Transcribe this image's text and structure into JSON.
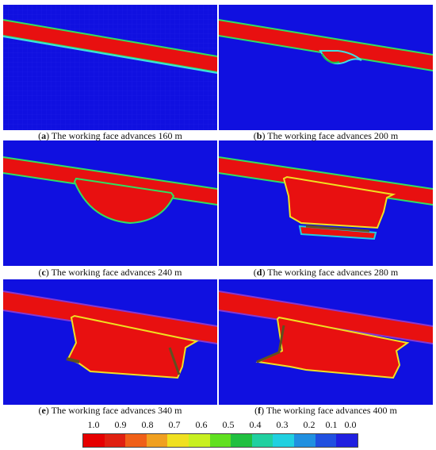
{
  "panels": [
    {
      "letter": "a",
      "text": "The working face advances 160 m"
    },
    {
      "letter": "b",
      "text": "The working face advances 200 m"
    },
    {
      "letter": "c",
      "text": "The working face advances 240 m"
    },
    {
      "letter": "d",
      "text": "The working face advances 280 m"
    },
    {
      "letter": "e",
      "text": "The working face advances 340 m"
    },
    {
      "letter": "f",
      "text": "The working face advances 400 m"
    }
  ],
  "legend": {
    "labels": [
      "1.0",
      "0.9",
      "0.8",
      "0.7",
      "0.6",
      "0.5",
      "0.4",
      "0.3",
      "0.2",
      "0.1",
      "0.0"
    ],
    "colors": [
      "#e60000",
      "#e02010",
      "#f06018",
      "#f0a020",
      "#f0e020",
      "#c8f020",
      "#60e020",
      "#20c040",
      "#20d0a0",
      "#20d0e0",
      "#2090e0",
      "#2050e0",
      "#2020e0"
    ]
  },
  "colors": {
    "background": "#1010e0",
    "failure": "#e81010"
  }
}
